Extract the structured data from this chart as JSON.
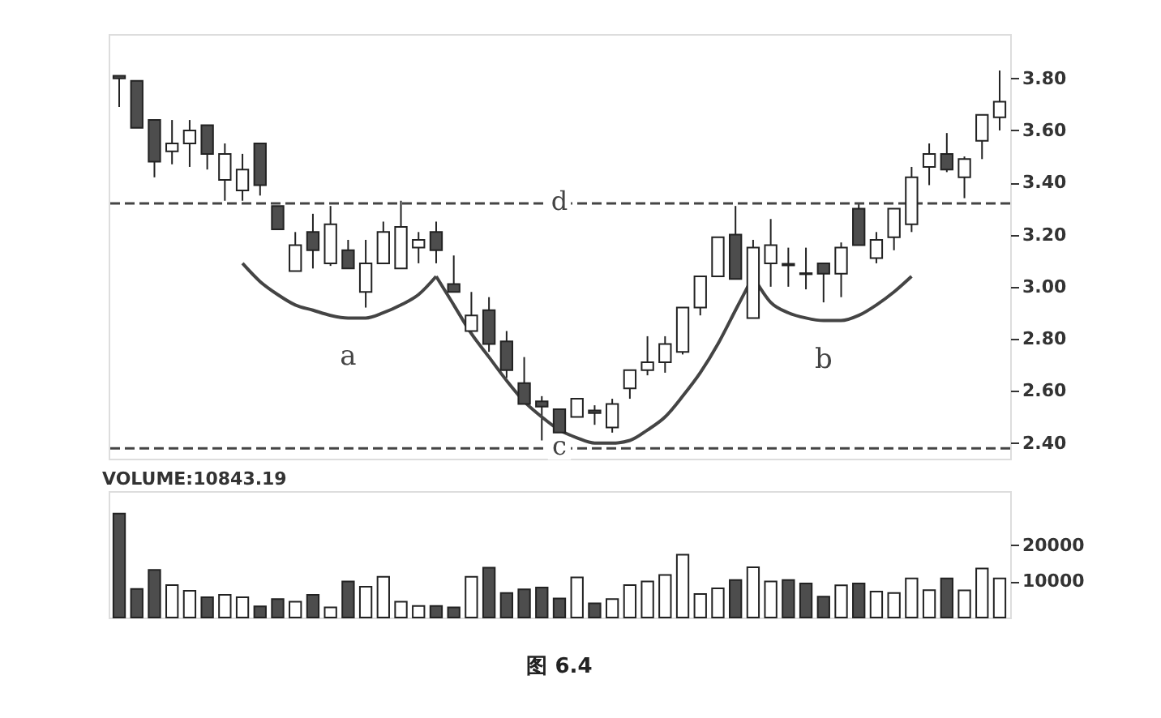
{
  "chart_data": [
    {
      "type": "candlestick",
      "categories": [
        null,
        null,
        null,
        null,
        null,
        null,
        null,
        null,
        null,
        null,
        null,
        null,
        null,
        null,
        null,
        null,
        null,
        null,
        null,
        null,
        null,
        null,
        null,
        null,
        null,
        null,
        null,
        null,
        null,
        null,
        null,
        null,
        null,
        null,
        null,
        null,
        null,
        null,
        null,
        null,
        null,
        null,
        null,
        null,
        null,
        null,
        null,
        null,
        null,
        null,
        null
      ],
      "ohlc": [
        [
          3.81,
          3.81,
          3.69,
          3.8
        ],
        [
          3.79,
          3.79,
          3.61,
          3.61
        ],
        [
          3.64,
          3.64,
          3.42,
          3.48
        ],
        [
          3.52,
          3.64,
          3.47,
          3.55
        ],
        [
          3.55,
          3.64,
          3.46,
          3.6
        ],
        [
          3.62,
          3.62,
          3.45,
          3.51
        ],
        [
          3.41,
          3.55,
          3.33,
          3.51
        ],
        [
          3.37,
          3.51,
          3.33,
          3.45
        ],
        [
          3.55,
          3.55,
          3.35,
          3.39
        ],
        [
          3.31,
          3.31,
          3.22,
          3.22
        ],
        [
          3.06,
          3.21,
          3.06,
          3.16
        ],
        [
          3.21,
          3.28,
          3.07,
          3.14
        ],
        [
          3.09,
          3.31,
          3.08,
          3.24
        ],
        [
          3.14,
          3.18,
          3.07,
          3.07
        ],
        [
          2.98,
          3.18,
          2.92,
          3.09
        ],
        [
          3.09,
          3.25,
          3.09,
          3.21
        ],
        [
          3.07,
          3.33,
          3.07,
          3.23
        ],
        [
          3.15,
          3.21,
          3.09,
          3.18
        ],
        [
          3.21,
          3.25,
          3.09,
          3.14
        ],
        [
          3.01,
          3.12,
          2.98,
          2.98
        ],
        [
          2.83,
          2.98,
          2.83,
          2.89
        ],
        [
          2.91,
          2.96,
          2.75,
          2.78
        ],
        [
          2.79,
          2.83,
          2.65,
          2.68
        ],
        [
          2.63,
          2.73,
          2.55,
          2.55
        ],
        [
          2.56,
          2.58,
          2.41,
          2.54
        ],
        [
          2.53,
          2.53,
          2.44,
          2.44
        ],
        [
          2.5,
          2.57,
          2.5,
          2.57
        ],
        [
          2.525,
          2.545,
          2.47,
          2.515
        ],
        [
          2.46,
          2.57,
          2.44,
          2.55
        ],
        [
          2.61,
          2.68,
          2.57,
          2.68
        ],
        [
          2.68,
          2.81,
          2.66,
          2.71
        ],
        [
          2.71,
          2.81,
          2.67,
          2.78
        ],
        [
          2.75,
          2.92,
          2.74,
          2.92
        ],
        [
          2.92,
          3.04,
          2.89,
          3.04
        ],
        [
          3.04,
          3.19,
          3.04,
          3.19
        ],
        [
          3.2,
          3.31,
          3.03,
          3.03
        ],
        [
          2.88,
          3.18,
          2.88,
          3.15
        ],
        [
          3.09,
          3.26,
          3.0,
          3.16
        ],
        [
          3.088,
          3.15,
          3.0,
          3.082
        ],
        [
          3.052,
          3.15,
          2.99,
          3.048
        ],
        [
          3.09,
          3.09,
          2.94,
          3.05
        ],
        [
          3.05,
          3.17,
          2.96,
          3.15
        ],
        [
          3.3,
          3.32,
          3.16,
          3.16
        ],
        [
          3.11,
          3.21,
          3.09,
          3.18
        ],
        [
          3.19,
          3.3,
          3.14,
          3.3
        ],
        [
          3.24,
          3.46,
          3.21,
          3.42
        ],
        [
          3.46,
          3.55,
          3.39,
          3.51
        ],
        [
          3.51,
          3.59,
          3.44,
          3.45
        ],
        [
          3.42,
          3.5,
          3.34,
          3.49
        ],
        [
          3.56,
          3.66,
          3.49,
          3.66
        ],
        [
          3.65,
          3.83,
          3.6,
          3.71
        ]
      ],
      "colors": [
        "#4d4d4d",
        "#4d4d4d",
        "#4d4d4d",
        "#ffffff",
        "#ffffff",
        "#4d4d4d",
        "#ffffff",
        "#ffffff",
        "#4d4d4d",
        "#4d4d4d",
        "#ffffff",
        "#4d4d4d",
        "#ffffff",
        "#4d4d4d",
        "#ffffff",
        "#ffffff",
        "#ffffff",
        "#ffffff",
        "#4d4d4d",
        "#4d4d4d",
        "#ffffff",
        "#4d4d4d",
        "#4d4d4d",
        "#4d4d4d",
        "#4d4d4d",
        "#4d4d4d",
        "#ffffff",
        "#4d4d4d",
        "#ffffff",
        "#ffffff",
        "#ffffff",
        "#ffffff",
        "#ffffff",
        "#ffffff",
        "#ffffff",
        "#4d4d4d",
        "#ffffff",
        "#ffffff",
        "#4d4d4d",
        "#4d4d4d",
        "#4d4d4d",
        "#ffffff",
        "#4d4d4d",
        "#ffffff",
        "#ffffff",
        "#ffffff",
        "#ffffff",
        "#4d4d4d",
        "#ffffff",
        "#ffffff",
        "#ffffff"
      ],
      "series": [
        {
          "type": "line",
          "name": "a",
          "color": "#444444",
          "values": [
            null,
            null,
            null,
            null,
            null,
            null,
            null,
            3.09,
            3.02,
            2.97,
            2.93,
            2.91,
            2.89,
            2.88,
            2.88,
            2.9,
            2.93,
            2.97,
            3.04,
            null,
            null,
            null,
            null,
            null,
            null,
            null,
            null,
            null,
            null,
            null,
            null,
            null,
            null,
            null,
            null,
            null,
            null,
            null,
            null,
            null,
            null,
            null,
            null,
            null,
            null,
            null,
            null,
            null,
            null,
            null,
            null
          ]
        },
        {
          "type": "line",
          "color": "#444444",
          "values": [
            null,
            null,
            null,
            null,
            null,
            null,
            null,
            null,
            null,
            null,
            null,
            null,
            null,
            null,
            null,
            null,
            null,
            null,
            3.04,
            2.93,
            2.82,
            2.73,
            2.64,
            2.56,
            2.5,
            2.45,
            2.42,
            2.4,
            2.4,
            2.41,
            2.45,
            2.5,
            2.58,
            2.67,
            2.78,
            2.91,
            3.04,
            null,
            null,
            null,
            null,
            null,
            null,
            null,
            null,
            null,
            null,
            null,
            null,
            null,
            null
          ]
        },
        {
          "type": "line",
          "name": "b",
          "color": "#444444",
          "values": [
            null,
            null,
            null,
            null,
            null,
            null,
            null,
            null,
            null,
            null,
            null,
            null,
            null,
            null,
            null,
            null,
            null,
            null,
            null,
            null,
            null,
            null,
            null,
            null,
            null,
            null,
            null,
            null,
            null,
            null,
            null,
            null,
            null,
            null,
            null,
            null,
            3.04,
            2.94,
            2.9,
            2.88,
            2.87,
            2.87,
            2.89,
            2.93,
            2.98,
            3.04,
            null,
            null,
            null,
            null,
            null
          ]
        }
      ],
      "ref_lines": [
        {
          "axis": "y",
          "value": 3.32,
          "label": "d",
          "color": "#444444",
          "line_style": "dashed"
        },
        {
          "axis": "y",
          "value": 2.38,
          "label": "c",
          "color": "#444444",
          "line_style": "dashed"
        }
      ],
      "ylim": [
        2.34,
        3.97
      ],
      "yticks": [
        {
          "value": 2.4,
          "label": "2.40"
        },
        {
          "value": 2.6,
          "label": "2.60"
        },
        {
          "value": 2.8,
          "label": "2.80"
        },
        {
          "value": 3.0,
          "label": "3.00"
        },
        {
          "value": 3.2,
          "label": "3.20"
        },
        {
          "value": 3.4,
          "label": "3.40"
        },
        {
          "value": 3.6,
          "label": "3.60"
        },
        {
          "value": 3.8,
          "label": "3.80"
        }
      ],
      "tick_labels": "y",
      "grid": false
    },
    {
      "type": "bar",
      "title": "VOLUME:10843.19",
      "categories": [
        null,
        null,
        null,
        null,
        null,
        null,
        null,
        null,
        null,
        null,
        null,
        null,
        null,
        null,
        null,
        null,
        null,
        null,
        null,
        null,
        null,
        null,
        null,
        null,
        null,
        null,
        null,
        null,
        null,
        null,
        null,
        null,
        null,
        null,
        null,
        null,
        null,
        null,
        null,
        null,
        null,
        null,
        null,
        null,
        null,
        null,
        null,
        null,
        null,
        null,
        null
      ],
      "values": [
        28800,
        7900,
        13200,
        9000,
        7400,
        5600,
        6300,
        5600,
        3100,
        5100,
        4400,
        6300,
        2800,
        10000,
        8500,
        11300,
        4400,
        3200,
        3200,
        2800,
        11300,
        13800,
        6800,
        7800,
        8300,
        5300,
        11100,
        3900,
        5100,
        9000,
        10000,
        11800,
        17400,
        6500,
        8100,
        10400,
        13900,
        10000,
        10400,
        9400,
        5800,
        8900,
        9400,
        7200,
        6800,
        10800,
        7600,
        10800,
        7500,
        13600,
        10800
      ],
      "colors": [
        "#4d4d4d",
        "#4d4d4d",
        "#4d4d4d",
        "#ffffff",
        "#ffffff",
        "#4d4d4d",
        "#ffffff",
        "#ffffff",
        "#4d4d4d",
        "#4d4d4d",
        "#ffffff",
        "#4d4d4d",
        "#ffffff",
        "#4d4d4d",
        "#ffffff",
        "#ffffff",
        "#ffffff",
        "#ffffff",
        "#4d4d4d",
        "#4d4d4d",
        "#ffffff",
        "#4d4d4d",
        "#4d4d4d",
        "#4d4d4d",
        "#4d4d4d",
        "#4d4d4d",
        "#ffffff",
        "#4d4d4d",
        "#ffffff",
        "#ffffff",
        "#ffffff",
        "#ffffff",
        "#ffffff",
        "#ffffff",
        "#ffffff",
        "#4d4d4d",
        "#ffffff",
        "#ffffff",
        "#4d4d4d",
        "#4d4d4d",
        "#4d4d4d",
        "#ffffff",
        "#4d4d4d",
        "#ffffff",
        "#ffffff",
        "#ffffff",
        "#ffffff",
        "#4d4d4d",
        "#ffffff",
        "#ffffff",
        "#ffffff"
      ],
      "ylim": [
        0,
        35000
      ],
      "yticks": [
        10000,
        20000
      ],
      "tick_labels": "y",
      "grid": false,
      "annotations": [
        "图 6.4"
      ]
    }
  ]
}
